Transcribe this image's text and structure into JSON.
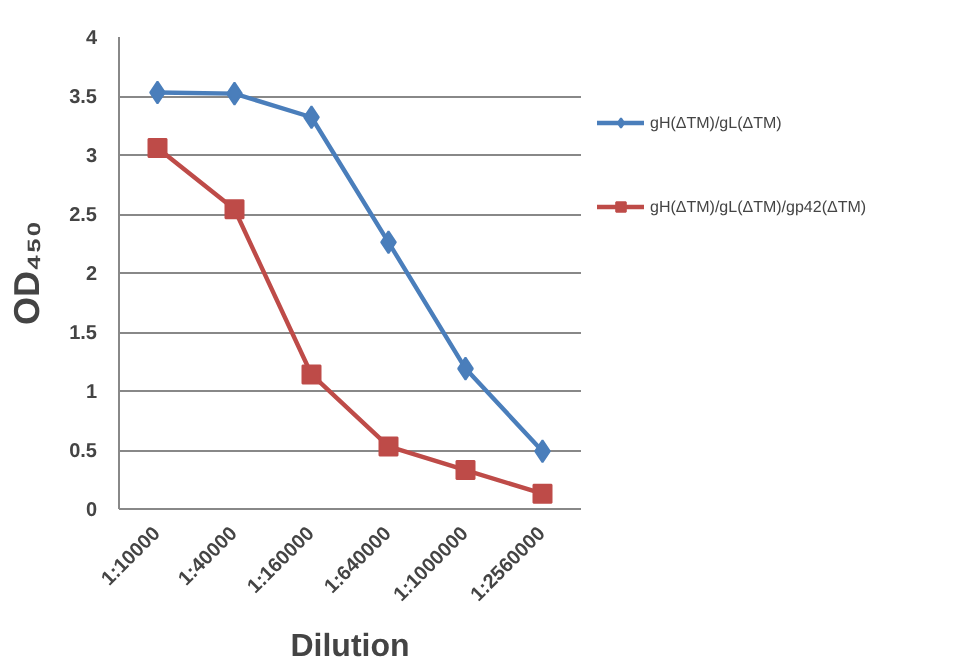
{
  "chart_data": {
    "type": "line",
    "xlabel": "Dilution",
    "ylabel": "OD₄₅₀",
    "categories": [
      "1:10000",
      "1:40000",
      "1:160000",
      "1:640000",
      "1:1000000",
      "1:2560000"
    ],
    "series": [
      {
        "name": "gH(ΔTM)/gL(ΔTM)",
        "color": "#4a7ebb",
        "marker": "diamond",
        "values": [
          3.53,
          3.52,
          3.32,
          2.26,
          1.19,
          0.49
        ]
      },
      {
        "name": "gH(ΔTM)/gL(ΔTM)/gp42(ΔTM)",
        "color": "#be4b48",
        "marker": "square",
        "values": [
          3.06,
          2.54,
          1.14,
          0.53,
          0.33,
          0.13
        ]
      }
    ],
    "ylim": [
      0,
      4
    ],
    "yticks": [
      0,
      0.5,
      1,
      1.5,
      2,
      2.5,
      3,
      3.5,
      4
    ],
    "grid": "y",
    "legend": "right"
  }
}
